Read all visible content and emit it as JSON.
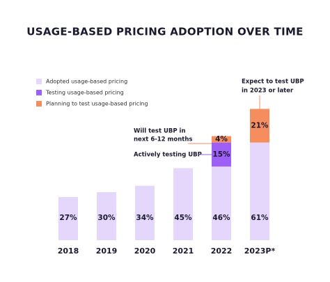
{
  "chart_data": {
    "type": "stacked-bar",
    "title": "USAGE-BASED PRICING ADOPTION OVER TIME",
    "categories": [
      "2018",
      "2019",
      "2020",
      "2021",
      "2022",
      "2023P*"
    ],
    "series": [
      {
        "name": "Adopted usage-based pricing",
        "color": "#e4d7fb",
        "values": [
          27,
          30,
          34,
          45,
          46,
          61
        ],
        "value_labels": [
          "27%",
          "30%",
          "34%",
          "45%",
          "46%",
          "61%"
        ]
      },
      {
        "name": "Testing usage-based pricing",
        "color": "#9d5ff5",
        "values": [
          null,
          null,
          null,
          null,
          15,
          null
        ],
        "value_labels": [
          null,
          null,
          null,
          null,
          "15%",
          null
        ]
      },
      {
        "name": "Planning to test usage-based pricing",
        "color": "#f68d5e",
        "values": [
          null,
          null,
          null,
          null,
          4,
          21
        ],
        "value_labels": [
          null,
          null,
          null,
          null,
          "4%",
          "21%"
        ]
      }
    ],
    "annotations": [
      {
        "lines": [
          "Will test UBP in",
          "next 6-12 months"
        ]
      },
      {
        "lines": [
          "Actively testing UBP"
        ]
      },
      {
        "lines": [
          "Expect to test UBP",
          "in 2023 or later"
        ]
      }
    ]
  }
}
